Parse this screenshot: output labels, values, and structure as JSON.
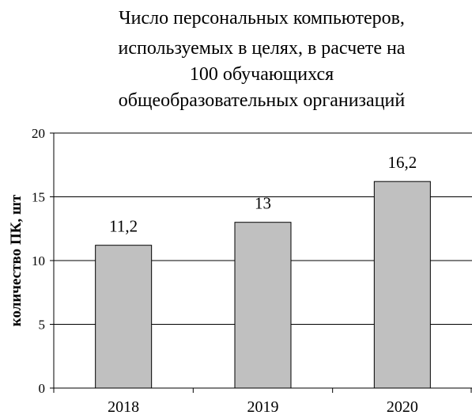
{
  "chart_data": {
    "type": "bar",
    "title_lines": [
      "Число персональных компьютеров,",
      "используемых в  целях, в расчете на",
      "100 обучающихся",
      "общеобразовательных организаций"
    ],
    "categories": [
      "2018",
      "2019",
      "2020"
    ],
    "values": [
      11.2,
      13,
      16.2
    ],
    "data_labels": [
      "11,2",
      "13",
      "16,2"
    ],
    "ylabel": "количество ПК, шт",
    "xlabel": "",
    "ylim": [
      0,
      20
    ],
    "yticks": [
      0,
      5,
      10,
      15,
      20
    ],
    "grid": true,
    "bar_color": "#c0c0c0",
    "bar_stroke": "#000000",
    "grid_color": "#000000"
  }
}
